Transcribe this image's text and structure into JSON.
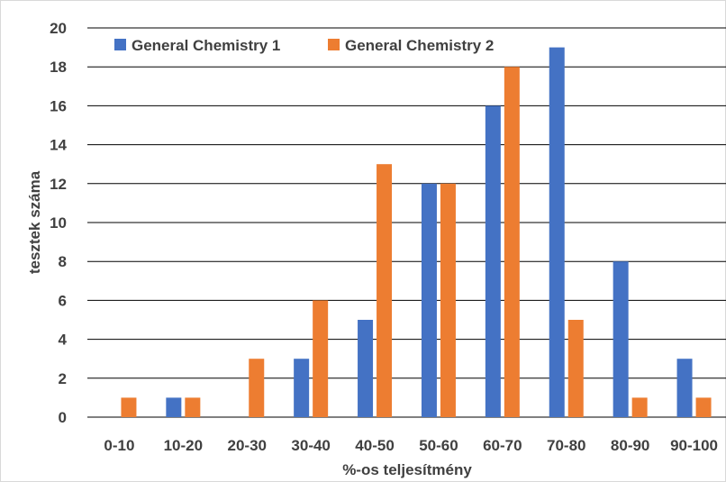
{
  "chart_data": {
    "type": "bar",
    "title": "",
    "xlabel": "%-os teljesítmény",
    "ylabel": "tesztek száma",
    "ylim": [
      0,
      20
    ],
    "ytick_step": 2,
    "grid": "horizontal",
    "legend_position": "top-left",
    "categories": [
      "0-10",
      "10-20",
      "20-30",
      "30-40",
      "40-50",
      "50-60",
      "60-70",
      "70-80",
      "80-90",
      "90-100"
    ],
    "series": [
      {
        "name": "General Chemistry 1",
        "color": "#4472C4",
        "values": [
          0,
          1,
          0,
          3,
          5,
          12,
          16,
          19,
          8,
          3
        ]
      },
      {
        "name": "General Chemistry 2",
        "color": "#ED7D31",
        "values": [
          1,
          1,
          3,
          6,
          13,
          12,
          18,
          5,
          1,
          1
        ]
      }
    ]
  }
}
